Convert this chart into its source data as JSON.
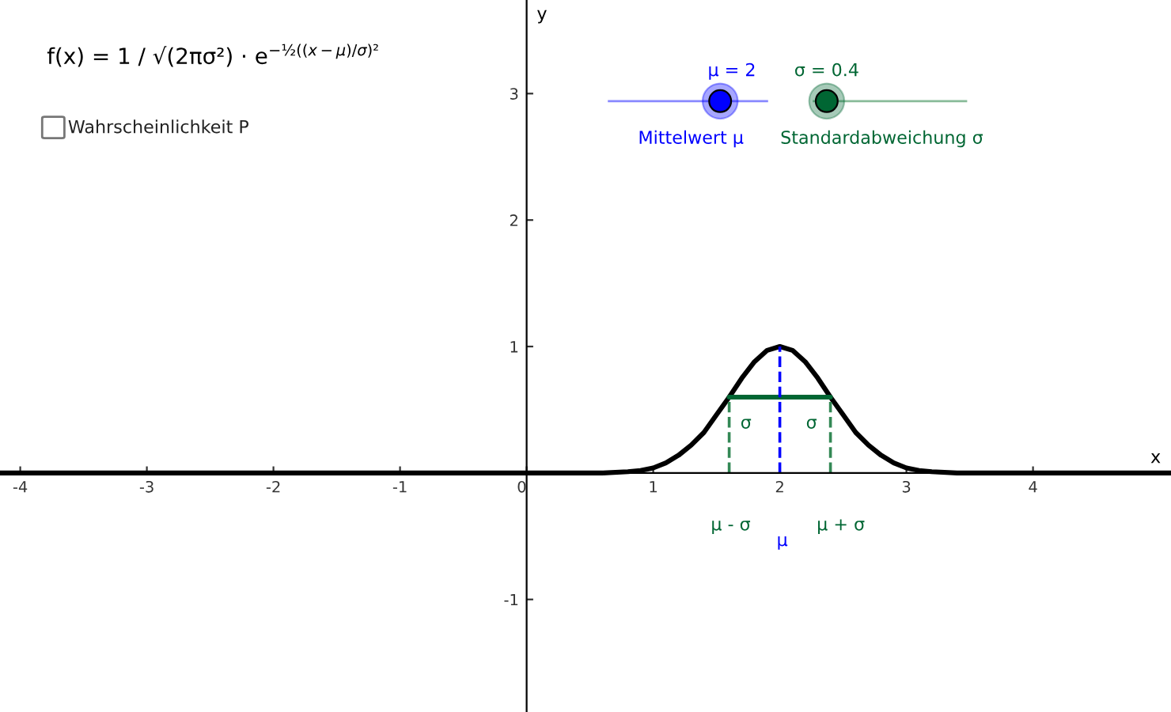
{
  "chart_data": {
    "type": "line",
    "xlabel": "x",
    "ylabel": "y",
    "xlim": [
      -4.16,
      5.09
    ],
    "ylim": [
      -1.89,
      3.74
    ],
    "xticks": [
      -4,
      -3,
      -2,
      -1,
      0,
      1,
      2,
      3,
      4
    ],
    "yticks": [
      -1,
      1,
      2,
      3
    ],
    "grid": false,
    "marker": "none",
    "series": [
      {
        "color": "#000000",
        "line_style": "solid",
        "x": [
          -4.16,
          0.6,
          0.8,
          0.9,
          1.0,
          1.1,
          1.2,
          1.3,
          1.4,
          1.5,
          1.6,
          1.7,
          1.8,
          1.9,
          2.0,
          2.1,
          2.2,
          2.3,
          2.4,
          2.5,
          2.6,
          2.7,
          2.8,
          2.9,
          3.0,
          3.1,
          3.2,
          3.4,
          5.09
        ],
        "values": [
          0,
          0,
          0.01,
          0.02,
          0.04,
          0.08,
          0.14,
          0.22,
          0.32,
          0.46,
          0.6,
          0.75,
          0.88,
          0.97,
          1,
          0.97,
          0.88,
          0.75,
          0.6,
          0.46,
          0.32,
          0.22,
          0.14,
          0.08,
          0.04,
          0.02,
          0.01,
          0,
          0
        ]
      },
      {
        "color": "#006633",
        "line_style": "solid",
        "x": [
          1.6,
          2.4
        ],
        "values": [
          0.6,
          0.6
        ]
      },
      {
        "color": "#0000ff",
        "line_style": "dashed",
        "x": [
          2,
          2
        ],
        "values": [
          0,
          1
        ]
      },
      {
        "color": "#338855",
        "line_style": "dashed",
        "x": [
          1.6,
          1.6
        ],
        "values": [
          0,
          0.6
        ]
      },
      {
        "color": "#338855",
        "line_style": "dashed",
        "x": [
          2.4,
          2.4
        ],
        "values": [
          0,
          0.6
        ]
      }
    ],
    "annotations": [
      "f(x) = 1 / √(2πσ²) · e$^{−½((x−μ)/σ)²}$",
      "Wahrscheinlichkeit P",
      "μ = 2",
      "σ = 0.4",
      "Mittelwert μ",
      "Standardabweichung σ",
      "σ",
      "σ",
      "μ - σ",
      "μ",
      "μ + σ"
    ]
  }
}
